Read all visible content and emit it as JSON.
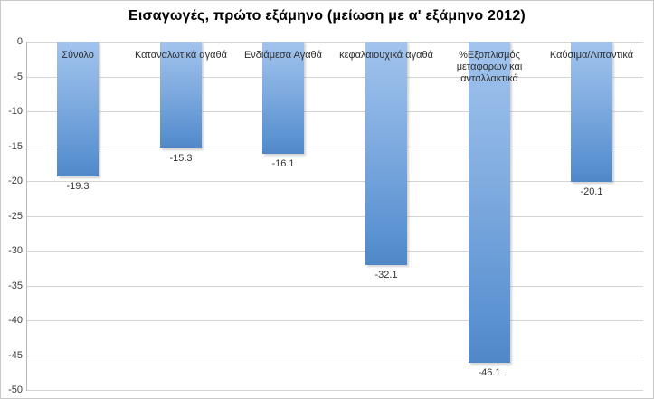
{
  "chart_data": {
    "type": "bar",
    "title": "Εισαγωγές, πρώτο εξάμηνο (μείωση με α' εξάμηνο 2012)",
    "categories": [
      "Σύνολο",
      "Καταναλωτικά αγαθά",
      "Ενδιάμεσα Αγαθά",
      "κεφαλαιουχικά αγαθά",
      "%Εξοπλισμός μεταφορών και ανταλλακτικά",
      "Καύσιμα/Λιπαντικά"
    ],
    "values": [
      -19.3,
      -15.3,
      -16.1,
      -32.1,
      -46.1,
      -20.1
    ],
    "data_labels": [
      "-19.3",
      "-15.3",
      "-16.1",
      "-32.1",
      "-46.1",
      "-20.1"
    ],
    "xlabel": "",
    "ylabel": "",
    "ylim": [
      -50,
      0
    ],
    "yticks": [
      0,
      -5,
      -10,
      -15,
      -20,
      -25,
      -30,
      -35,
      -40,
      -45,
      -50
    ],
    "grid": true,
    "legend": false,
    "bar_gradient_top": "#a2c4ee",
    "bar_gradient_bottom": "#5087c7",
    "gridline_color": "#d4d4d4",
    "axis_line_color": "#b9b9b9",
    "text_color": "#2e2e2e",
    "background_color": "#ffffff",
    "border_color": "#c9c9c9"
  }
}
